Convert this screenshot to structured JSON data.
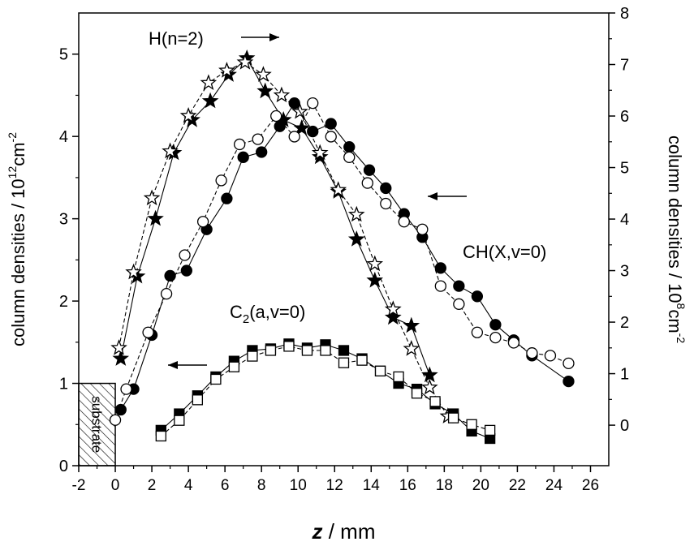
{
  "chart_data": {
    "type": "scatter",
    "xlabel_italic": "z",
    "xlabel_rest": " / mm",
    "ylabel_left": {
      "base": "column densities / 10",
      "exp1": "12",
      "mid": "cm",
      "exp2": "-2"
    },
    "ylabel_right": {
      "base": "column densities / 10",
      "exp1": "8",
      "mid": "cm",
      "exp2": "-2"
    },
    "xlim": [
      -2,
      27
    ],
    "ylim_left": [
      0,
      5.5
    ],
    "ylim_right": [
      -0.786,
      8
    ],
    "x_ticks": [
      -2,
      0,
      2,
      4,
      6,
      8,
      10,
      12,
      14,
      16,
      18,
      20,
      22,
      24,
      26
    ],
    "y_left_ticks": [
      0,
      1,
      2,
      3,
      4,
      5
    ],
    "y_right_ticks": [
      0,
      1,
      2,
      3,
      4,
      5,
      6,
      7,
      8
    ],
    "annotations": {
      "h_label": "H(n=2)",
      "ch_label": "CH(X,v=0)",
      "c2_label": {
        "base": "C",
        "sub": "2",
        "rest": "(a,v=0)"
      },
      "substrate_label": "substrate"
    },
    "substrate": {
      "x_range": [
        -2,
        0
      ],
      "y_range": [
        0,
        1
      ]
    },
    "series": [
      {
        "marker": "star-filled",
        "axis": "left",
        "x": [
          0.3,
          1.2,
          2.2,
          3.2,
          4.2,
          5.2,
          6.2,
          7.2,
          8.2,
          9.2,
          10.2,
          11.2,
          12.2,
          13.2,
          14.2,
          15.2,
          16.2,
          17.2
        ],
        "y": [
          1.3,
          2.3,
          3.0,
          3.8,
          4.2,
          4.43,
          4.75,
          4.95,
          4.55,
          4.2,
          4.1,
          3.75,
          3.33,
          2.75,
          2.25,
          1.8,
          1.7,
          1.1
        ]
      },
      {
        "marker": "star-open",
        "axis": "left",
        "x": [
          0.2,
          1.0,
          2.0,
          3.0,
          4.0,
          5.1,
          6.1,
          7.1,
          8.1,
          9.1,
          10.1,
          11.2,
          12.2,
          13.2,
          14.2,
          15.2,
          16.2,
          17.2,
          18.2
        ],
        "y": [
          1.43,
          2.35,
          3.25,
          3.82,
          4.25,
          4.65,
          4.8,
          4.9,
          4.75,
          4.5,
          4.3,
          3.8,
          3.35,
          3.05,
          2.45,
          1.9,
          1.42,
          0.95,
          0.6
        ]
      },
      {
        "marker": "circle-filled",
        "axis": "right",
        "x": [
          0.3,
          1.0,
          2.0,
          3.0,
          3.9,
          5.0,
          6.1,
          7.0,
          8.0,
          9.0,
          9.8,
          10.8,
          11.8,
          12.8,
          13.9,
          14.8,
          15.8,
          16.8,
          17.8,
          18.8,
          19.8,
          20.8,
          21.8,
          22.8,
          24.8
        ],
        "y": [
          0.3,
          0.7,
          1.75,
          2.9,
          3.0,
          3.8,
          4.4,
          5.2,
          5.3,
          5.8,
          6.25,
          5.7,
          5.85,
          5.4,
          4.95,
          4.6,
          4.1,
          3.65,
          3.05,
          2.7,
          2.5,
          1.95,
          1.65,
          1.35,
          0.85
        ]
      },
      {
        "marker": "circle-open",
        "axis": "right",
        "x": [
          0.0,
          0.6,
          1.8,
          2.8,
          3.8,
          4.8,
          5.8,
          6.8,
          7.8,
          8.8,
          9.8,
          10.8,
          11.8,
          12.8,
          13.8,
          14.8,
          15.8,
          16.8,
          17.8,
          18.8,
          19.8,
          20.8,
          21.8,
          22.8,
          23.8,
          24.8
        ],
        "y": [
          0.1,
          0.7,
          1.8,
          2.55,
          3.3,
          3.95,
          4.75,
          5.45,
          5.55,
          6.0,
          5.6,
          6.25,
          5.6,
          5.2,
          4.7,
          4.3,
          3.95,
          3.8,
          2.7,
          2.35,
          1.8,
          1.7,
          1.6,
          1.4,
          1.35,
          1.2
        ]
      },
      {
        "marker": "square-filled",
        "axis": "left",
        "x": [
          2.5,
          3.5,
          4.5,
          5.5,
          6.5,
          7.5,
          8.5,
          9.5,
          10.5,
          11.5,
          12.5,
          13.5,
          14.5,
          15.5,
          16.5,
          17.5,
          18.5,
          19.5,
          20.5
        ],
        "y": [
          0.43,
          0.63,
          0.85,
          1.08,
          1.27,
          1.4,
          1.42,
          1.48,
          1.43,
          1.47,
          1.4,
          1.3,
          1.15,
          1.0,
          0.93,
          0.75,
          0.63,
          0.42,
          0.33
        ]
      },
      {
        "marker": "square-open",
        "axis": "left",
        "x": [
          2.5,
          3.5,
          4.5,
          5.5,
          6.5,
          7.5,
          8.5,
          9.5,
          10.5,
          11.5,
          12.5,
          13.5,
          14.5,
          15.5,
          16.5,
          17.5,
          18.5,
          19.5,
          20.5
        ],
        "y": [
          0.36,
          0.55,
          0.8,
          1.05,
          1.2,
          1.33,
          1.4,
          1.45,
          1.4,
          1.4,
          1.25,
          1.28,
          1.15,
          1.08,
          0.88,
          0.78,
          0.58,
          0.5,
          0.43
        ]
      }
    ]
  }
}
